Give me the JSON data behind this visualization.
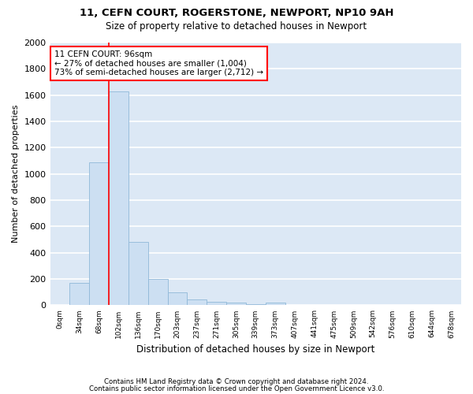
{
  "title1": "11, CEFN COURT, ROGERSTONE, NEWPORT, NP10 9AH",
  "title2": "Size of property relative to detached houses in Newport",
  "xlabel": "Distribution of detached houses by size in Newport",
  "ylabel": "Number of detached properties",
  "bar_color": "#ccdff2",
  "bar_edge_color": "#90b8d8",
  "background_color": "#dce8f5",
  "grid_color": "#ffffff",
  "categories": [
    "0sqm",
    "34sqm",
    "68sqm",
    "102sqm",
    "136sqm",
    "170sqm",
    "203sqm",
    "237sqm",
    "271sqm",
    "305sqm",
    "339sqm",
    "373sqm",
    "407sqm",
    "441sqm",
    "475sqm",
    "509sqm",
    "542sqm",
    "576sqm",
    "610sqm",
    "644sqm",
    "678sqm"
  ],
  "values": [
    0,
    170,
    1090,
    1630,
    480,
    200,
    100,
    42,
    28,
    18,
    10,
    22,
    0,
    0,
    0,
    0,
    0,
    0,
    0,
    0,
    0
  ],
  "ylim": [
    0,
    2000
  ],
  "yticks": [
    0,
    200,
    400,
    600,
    800,
    1000,
    1200,
    1400,
    1600,
    1800,
    2000
  ],
  "property_line_x": 2.5,
  "annotation_text_line1": "11 CEFN COURT: 96sqm",
  "annotation_text_line2": "← 27% of detached houses are smaller (1,004)",
  "annotation_text_line3": "73% of semi-detached houses are larger (2,712) →",
  "footer1": "Contains HM Land Registry data © Crown copyright and database right 2024.",
  "footer2": "Contains public sector information licensed under the Open Government Licence v3.0."
}
